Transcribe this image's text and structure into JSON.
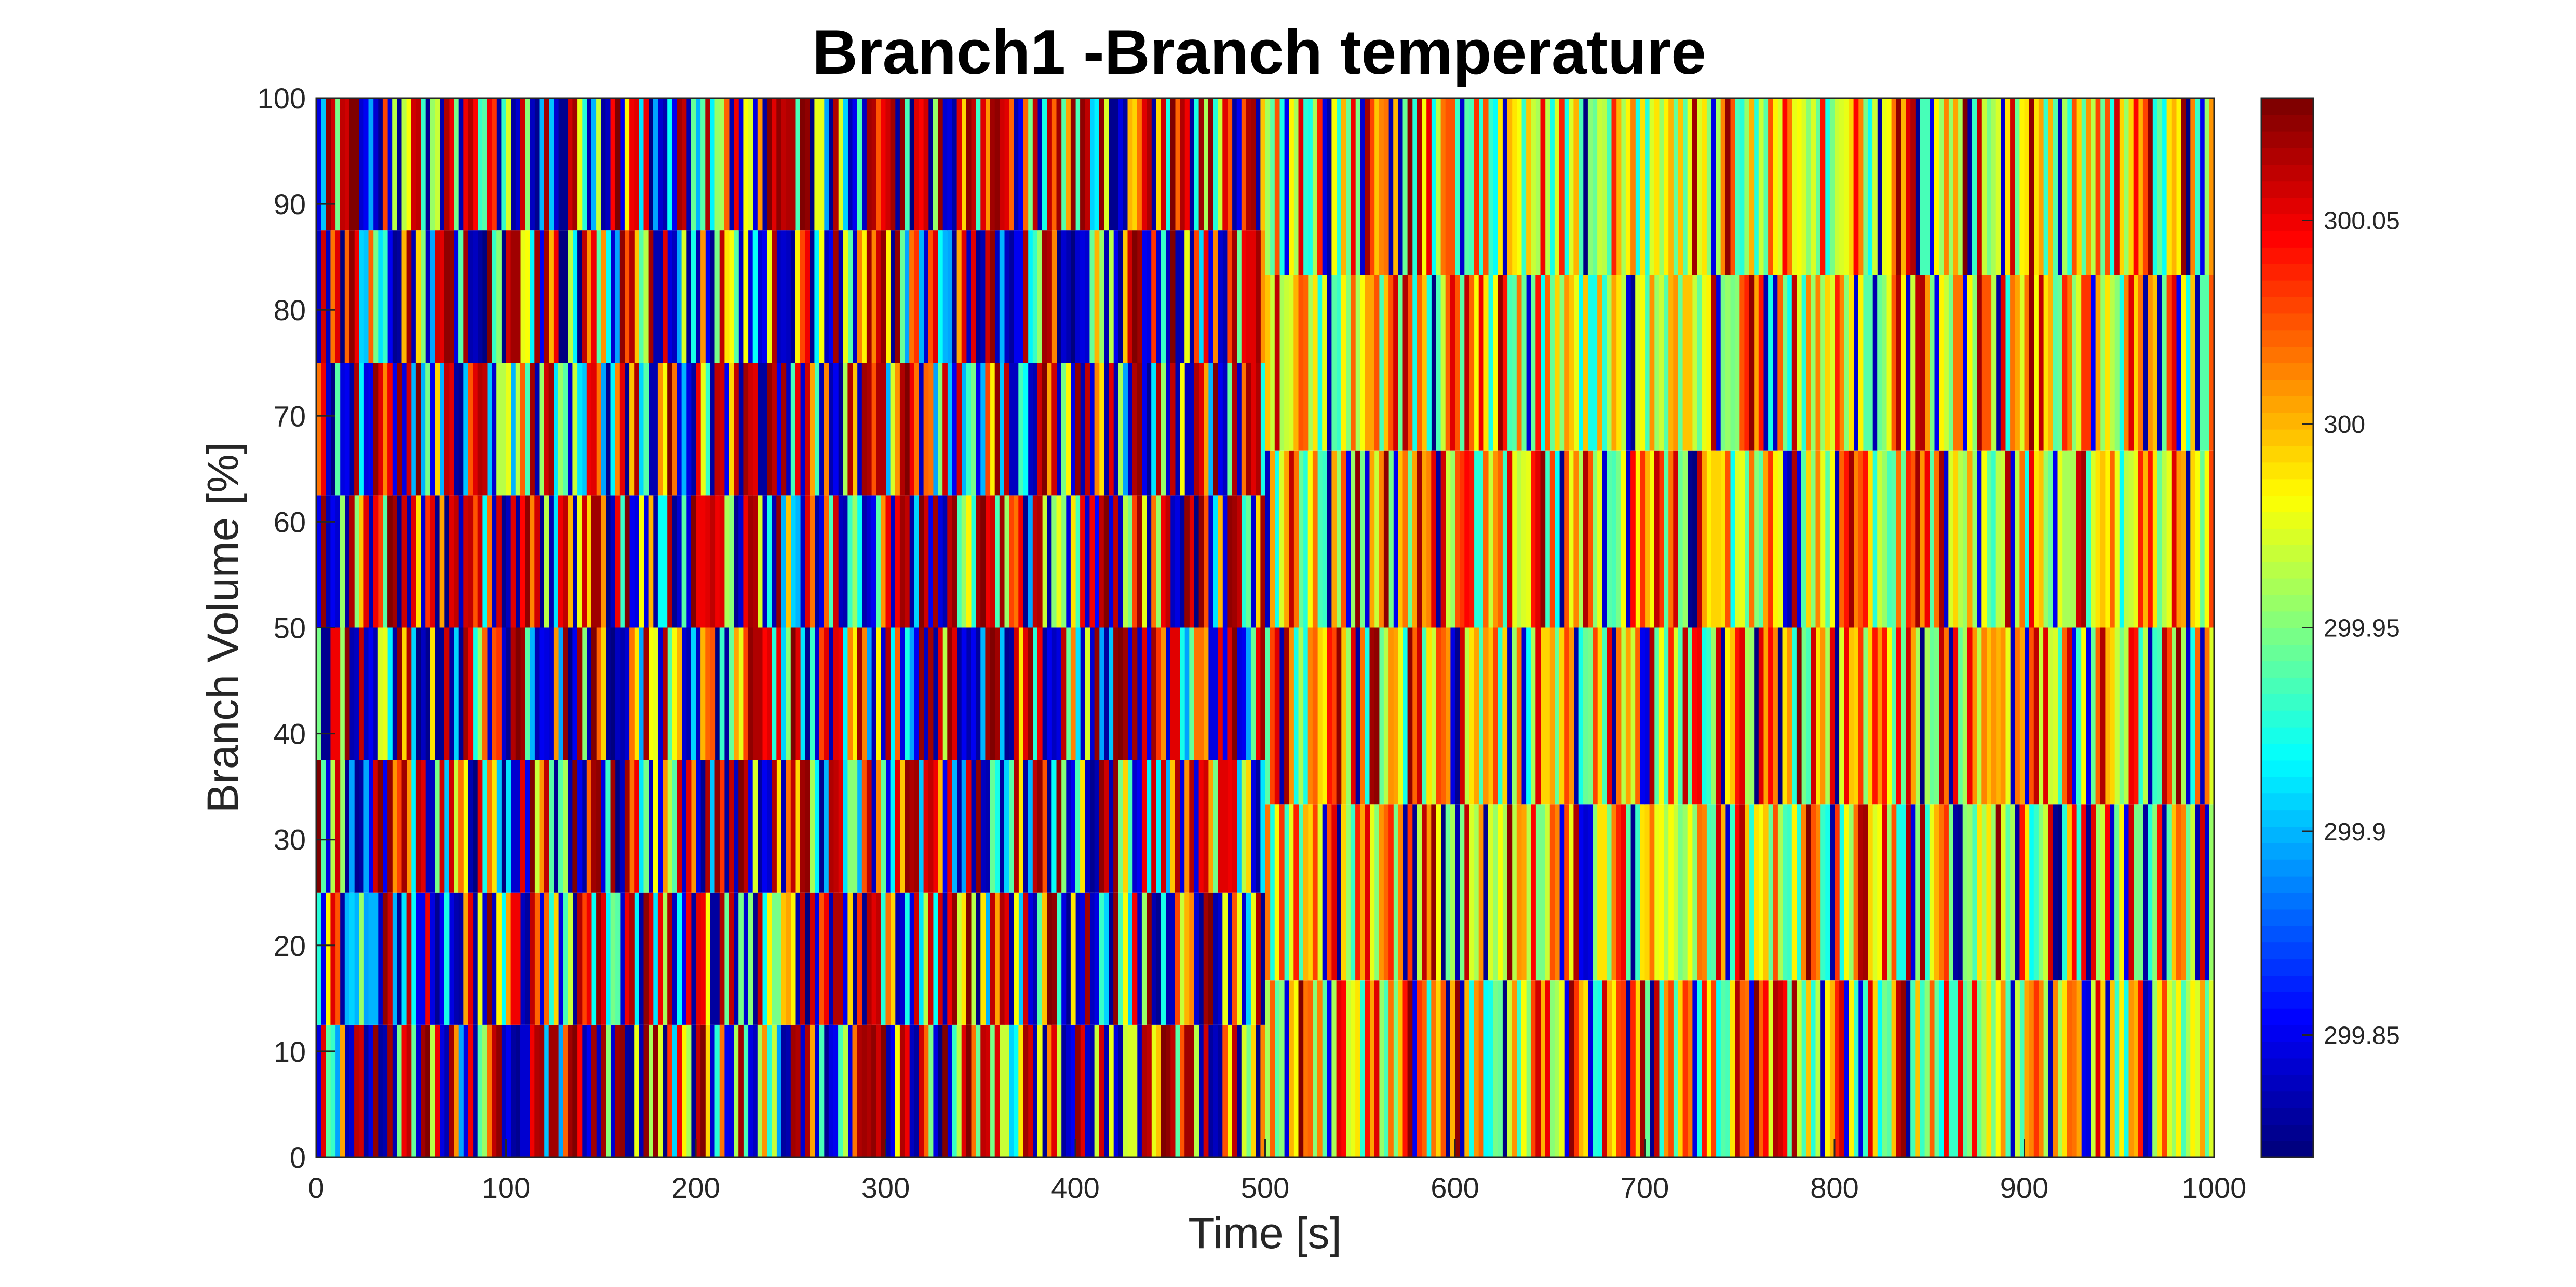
{
  "chart_data": {
    "type": "heatmap",
    "title": "Branch1 -Branch temperature",
    "xlabel": "Time [s]",
    "ylabel": "Branch Volume [%]",
    "xlim": [
      0,
      1000
    ],
    "ylim": [
      0,
      100
    ],
    "xticks": [
      0,
      100,
      200,
      300,
      400,
      500,
      600,
      700,
      800,
      900,
      1000
    ],
    "yticks": [
      0,
      10,
      20,
      30,
      40,
      50,
      60,
      70,
      80,
      90,
      100
    ],
    "colormap": "jet",
    "clim": [
      299.82,
      300.08
    ],
    "colorbar_ticks": [
      299.85,
      299.9,
      299.95,
      300,
      300.05
    ],
    "colorbar_tick_labels": [
      "299.85",
      "299.9",
      "299.95",
      "300",
      "300.05"
    ],
    "grid": false,
    "segments": [
      {
        "time_range": [
          0,
          500
        ],
        "volume_edges": [
          0,
          12.5,
          25,
          37.5,
          50,
          62.5,
          75,
          87.5,
          100
        ],
        "pattern": "dense oscillating temperatures spanning the full color range (about 299.82 to 300.08 K) across all 8 volume cells"
      },
      {
        "time_range": [
          500,
          1000
        ],
        "volume_edges": [
          0,
          16.7,
          33.3,
          50,
          66.7,
          83.3,
          100
        ],
        "pattern": "oscillating temperatures concentrated near 299.92 to 300.02 K across 6 volume cells, with occasional full-range spikes"
      }
    ]
  }
}
